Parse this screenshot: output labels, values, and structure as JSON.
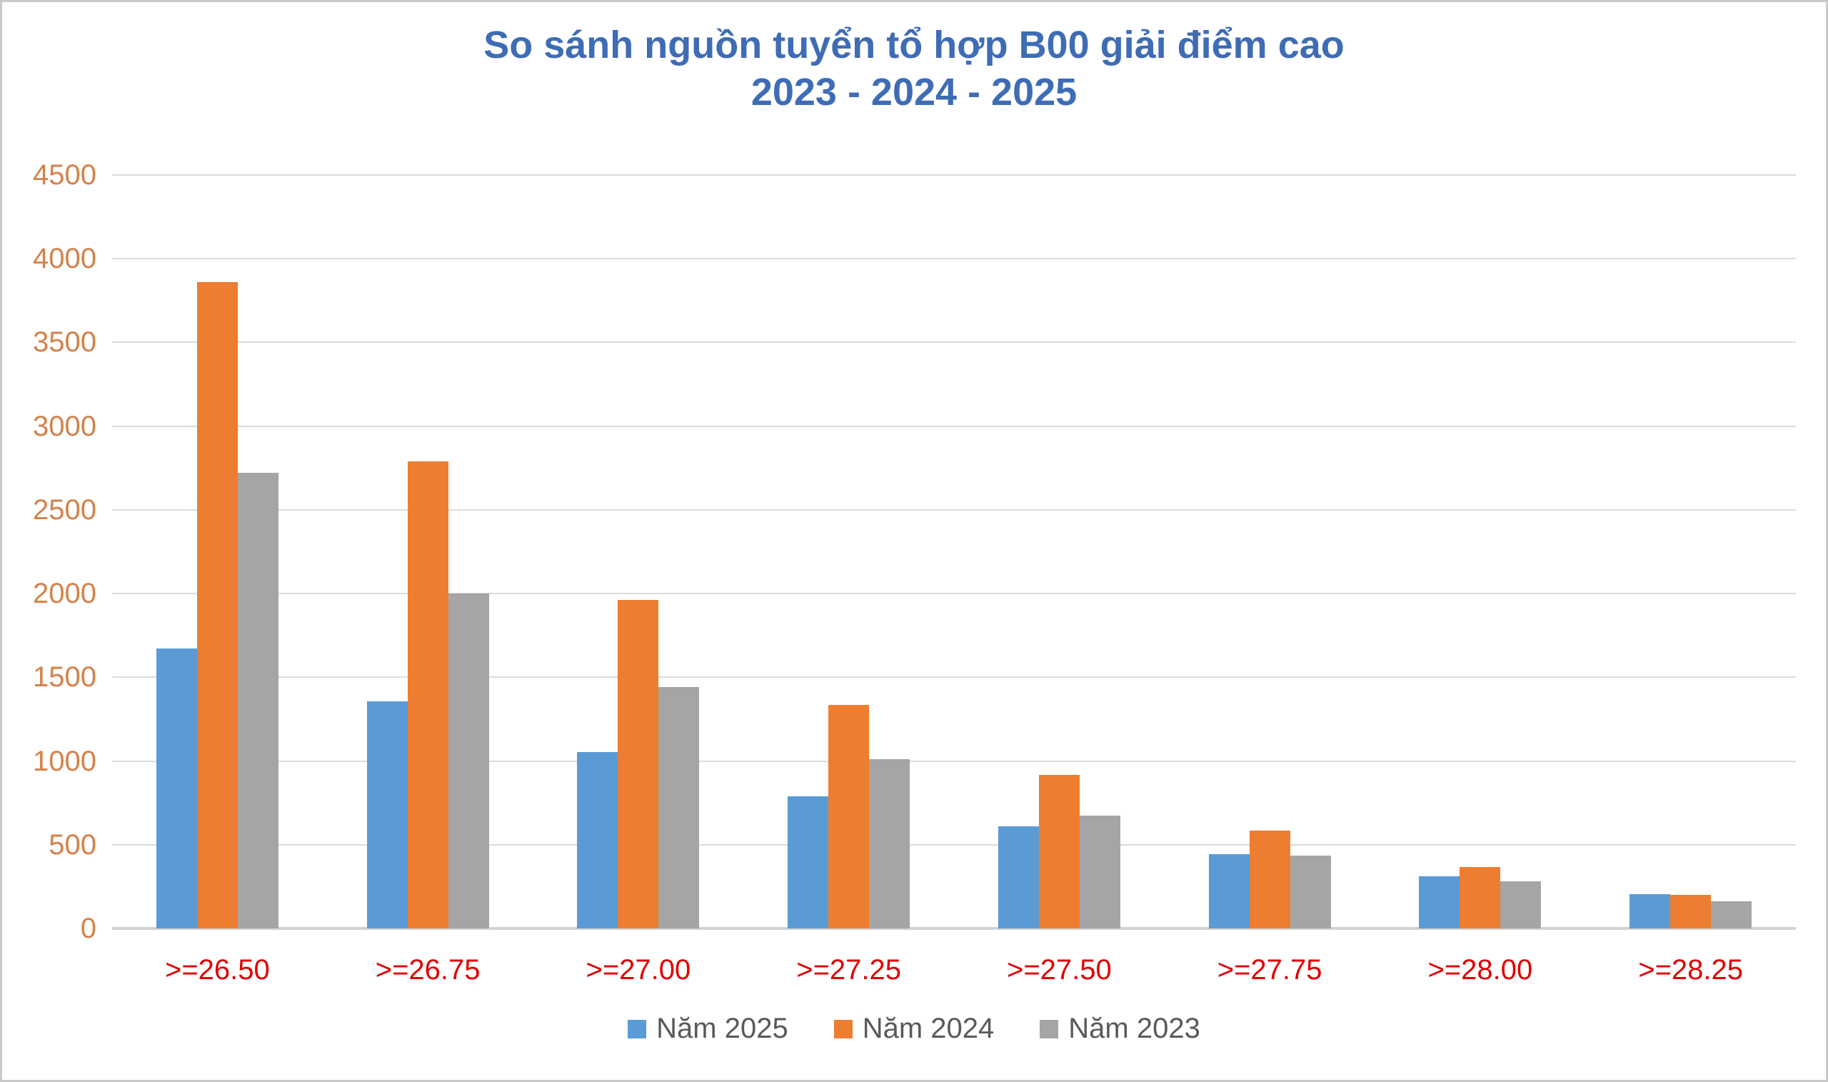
{
  "title": {
    "line1": "So sánh nguồn tuyển tổ hợp B00 giải điểm cao",
    "line2": "2023 - 2024 - 2025"
  },
  "chart_data": {
    "type": "bar",
    "title": "So sánh nguồn tuyển tổ hợp B00 giải điểm cao 2023 - 2024 - 2025",
    "categories": [
      ">=26.50",
      ">=26.75",
      ">=27.00",
      ">=27.25",
      ">=27.50",
      ">=27.75",
      ">=28.00",
      ">=28.25"
    ],
    "series": [
      {
        "name": "Năm 2025",
        "key": "nam-2025",
        "color": "#5B9BD5",
        "values": [
          1670,
          1355,
          1055,
          790,
          610,
          445,
          310,
          205
        ]
      },
      {
        "name": "Năm 2024",
        "key": "nam-2024",
        "color": "#ED7D31",
        "values": [
          3860,
          2790,
          1960,
          1335,
          915,
          585,
          365,
          200
        ]
      },
      {
        "name": "Năm 2023",
        "key": "nam-2023",
        "color": "#A5A5A5",
        "values": [
          2720,
          2000,
          1440,
          1010,
          675,
          435,
          280,
          160
        ]
      }
    ],
    "xlabel": "",
    "ylabel": "",
    "ylim": [
      0,
      4500
    ],
    "ytick_step": 500,
    "y_tick_labels": [
      "0",
      "500",
      "1000",
      "1500",
      "2000",
      "2500",
      "3000",
      "3500",
      "4000",
      "4500"
    ],
    "grid": true,
    "legend_position": "bottom"
  },
  "styles": {
    "title_color": "#3E6CB5",
    "y_tick_color": "#D4824A",
    "x_tick_color": "#E00000",
    "legend_text_color": "#595959",
    "gridline_color": "#DBDBDB",
    "bar_blue": "#5B9BD5",
    "bar_orange": "#ED7D31",
    "bar_gray": "#A5A5A5"
  }
}
